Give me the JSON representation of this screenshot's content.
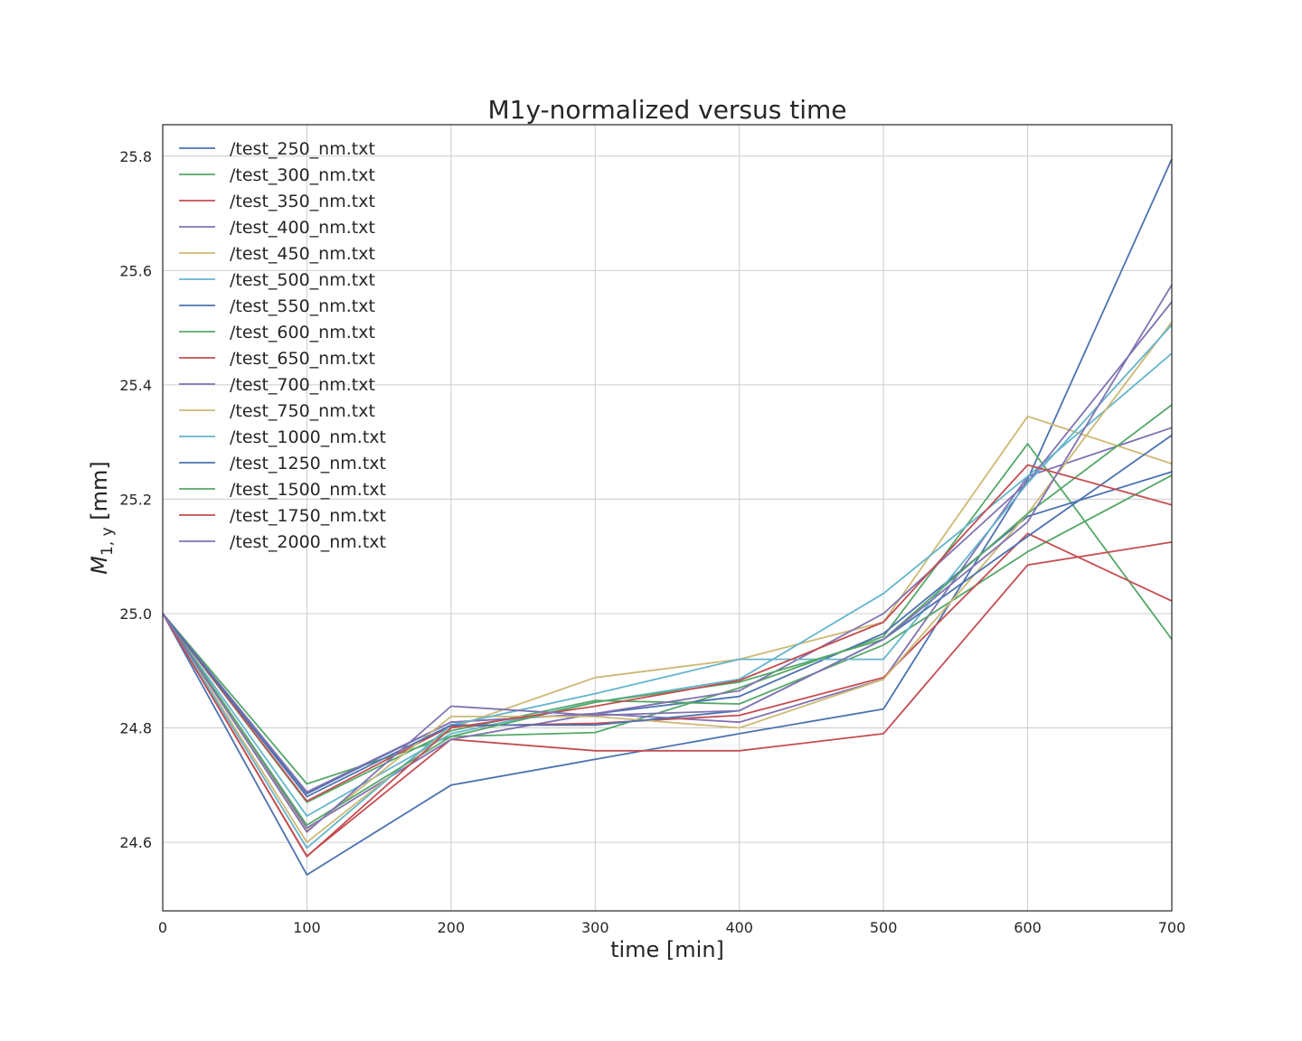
{
  "chart_data": {
    "type": "line",
    "title": "M1y-normalized versus time",
    "xlabel": "time [min]",
    "ylabel": "M1,y [mm]",
    "ylabel_main": "M",
    "ylabel_sub": "1, y",
    "ylabel_unit": " [mm]",
    "xlim": [
      0,
      700
    ],
    "ylim": [
      24.48,
      25.855
    ],
    "xticks": [
      0,
      100,
      200,
      300,
      400,
      500,
      600,
      700
    ],
    "yticks": [
      24.6,
      24.8,
      25.0,
      25.2,
      25.4,
      25.6,
      25.8
    ],
    "xtick_labels": [
      "0",
      "100",
      "200",
      "300",
      "400",
      "500",
      "600",
      "700"
    ],
    "ytick_labels": [
      "24.6",
      "24.8",
      "25.0",
      "25.2",
      "25.4",
      "25.6",
      "25.8"
    ],
    "grid": true,
    "legend_position": "top-left",
    "x": [
      0,
      100,
      200,
      300,
      400,
      500,
      600,
      700
    ],
    "series": [
      {
        "name": "/test_250_nm.txt",
        "color": "#4c72b0",
        "values": [
          25.0,
          24.543,
          24.7,
          24.745,
          24.79,
          24.833,
          25.235,
          25.795
        ]
      },
      {
        "name": "/test_300_nm.txt",
        "color": "#55a868",
        "values": [
          25.0,
          24.702,
          24.785,
          24.792,
          24.87,
          24.96,
          25.297,
          24.955
        ]
      },
      {
        "name": "/test_350_nm.txt",
        "color": "#c44e52",
        "values": [
          25.0,
          24.576,
          24.78,
          24.76,
          24.76,
          24.79,
          25.085,
          25.125
        ]
      },
      {
        "name": "/test_400_nm.txt",
        "color": "#8172b2",
        "values": [
          25.0,
          24.625,
          24.78,
          24.825,
          24.81,
          24.885,
          25.24,
          25.325
        ]
      },
      {
        "name": "/test_450_nm.txt",
        "color": "#ccb974",
        "values": [
          25.0,
          24.6,
          24.8,
          24.888,
          24.92,
          24.985,
          25.345,
          25.262
        ]
      },
      {
        "name": "/test_500_nm.txt",
        "color": "#64b5cd",
        "values": [
          25.0,
          24.646,
          24.79,
          24.845,
          24.885,
          25.035,
          25.24,
          25.455
        ]
      },
      {
        "name": "/test_550_nm.txt",
        "color": "#4c72b0",
        "values": [
          25.0,
          24.685,
          24.81,
          24.825,
          24.855,
          24.965,
          25.17,
          25.248
        ]
      },
      {
        "name": "/test_600_nm.txt",
        "color": "#55a868",
        "values": [
          25.0,
          24.67,
          24.795,
          24.848,
          24.842,
          24.945,
          25.108,
          25.242
        ]
      },
      {
        "name": "/test_650_nm.txt",
        "color": "#c44e52",
        "values": [
          25.0,
          24.672,
          24.803,
          24.808,
          24.822,
          24.888,
          25.14,
          25.022
        ]
      },
      {
        "name": "/test_700_nm.txt",
        "color": "#8172b2",
        "values": [
          25.0,
          24.688,
          24.81,
          24.825,
          24.865,
          25.0,
          25.23,
          25.545
        ]
      },
      {
        "name": "/test_750_nm.txt",
        "color": "#ccb974",
        "values": [
          25.0,
          24.62,
          24.82,
          24.82,
          24.8,
          24.885,
          25.175,
          25.51
        ]
      },
      {
        "name": "/test_1000_nm.txt",
        "color": "#64b5cd",
        "values": [
          25.0,
          24.59,
          24.805,
          24.86,
          24.92,
          24.92,
          25.228,
          25.505
        ]
      },
      {
        "name": "/test_1250_nm.txt",
        "color": "#4c72b0",
        "values": [
          25.0,
          24.68,
          24.805,
          24.805,
          24.83,
          24.955,
          25.135,
          25.312
        ]
      },
      {
        "name": "/test_1500_nm.txt",
        "color": "#55a868",
        "values": [
          25.0,
          24.63,
          24.785,
          24.845,
          24.88,
          24.955,
          25.175,
          25.365
        ]
      },
      {
        "name": "/test_1750_nm.txt",
        "color": "#c44e52",
        "values": [
          25.0,
          24.575,
          24.8,
          24.838,
          24.883,
          24.985,
          25.26,
          25.19
        ]
      },
      {
        "name": "/test_2000_nm.txt",
        "color": "#8172b2",
        "values": [
          25.0,
          24.618,
          24.838,
          24.822,
          24.83,
          24.955,
          25.16,
          25.575
        ]
      }
    ]
  }
}
